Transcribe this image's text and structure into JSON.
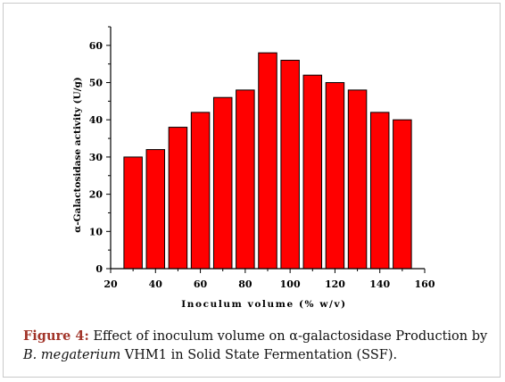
{
  "chart_data": {
    "type": "bar",
    "x": [
      30,
      40,
      50,
      60,
      70,
      80,
      90,
      100,
      110,
      120,
      130,
      140,
      150
    ],
    "values": [
      30,
      32,
      38,
      42,
      46,
      48,
      58,
      56,
      52,
      50,
      48,
      42,
      40
    ],
    "xlabel": "Inoculum volume (% w/v)",
    "ylabel": "α-Galactosidase activity (U/g)",
    "xlim": [
      20,
      160
    ],
    "ylim": [
      0,
      65
    ],
    "xticks": [
      20,
      40,
      60,
      80,
      100,
      120,
      140,
      160
    ],
    "yticks": [
      0,
      10,
      20,
      30,
      40,
      50,
      60
    ],
    "bar_color": "#ff0000",
    "grid": false
  },
  "caption": {
    "label": "Figure 4:",
    "text_a": " Effect of inoculum volume on α-galactosidase Production by ",
    "organism": "B. megaterium",
    "text_b": " VHM1 in Solid State Fermentation (SSF)."
  }
}
